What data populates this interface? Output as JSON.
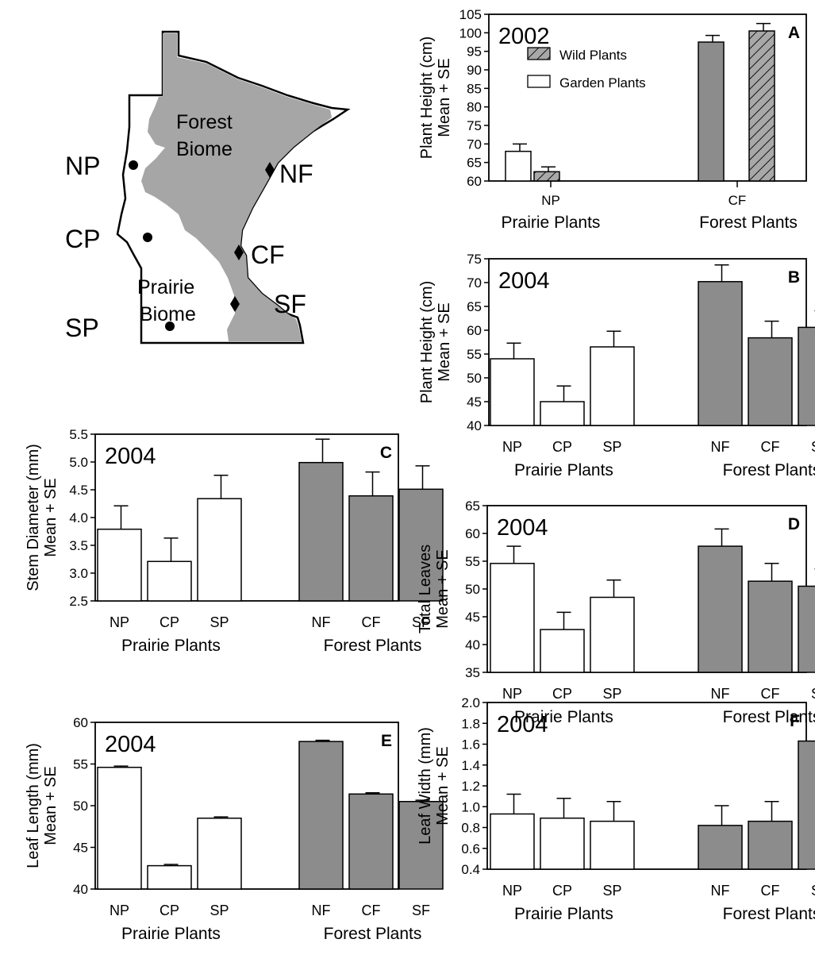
{
  "map": {
    "forest_label": [
      "Forest",
      "Biome"
    ],
    "prairie_label": [
      "Prairie",
      "Biome"
    ],
    "sites": [
      "NP",
      "NF",
      "CP",
      "CF",
      "SP",
      "SF"
    ],
    "colors": {
      "forest": "#a6a6a6",
      "prairie": "#ffffff",
      "outline": "#000000"
    },
    "markers": {
      "prairie": "circle",
      "forest": "diamond"
    }
  },
  "colors": {
    "garden": "#ffffff",
    "forest_bar": "#8c8c8c",
    "wild": "#a8a8a8",
    "stroke": "#000000"
  },
  "chart_data": [
    {
      "id": "A",
      "type": "bar",
      "panel": "A",
      "year": "2002",
      "ylabel": [
        "Plant Height (cm)",
        "Mean + SE"
      ],
      "ylim": [
        60,
        105
      ],
      "yticks": [
        60,
        65,
        70,
        75,
        80,
        85,
        90,
        95,
        100,
        105
      ],
      "groups": [
        "Prairie  Plants",
        "Forest Plants"
      ],
      "categories": [
        "NP",
        "CF"
      ],
      "legend": [
        {
          "name": "Wild Plants",
          "style": "hatched"
        },
        {
          "name": "Garden Plants",
          "style": "open"
        }
      ],
      "bars": [
        {
          "category": "NP",
          "series": "Garden Plants",
          "value": 68,
          "se": 2,
          "style": "open"
        },
        {
          "category": "NP",
          "series": "Wild Plants",
          "value": 62.5,
          "se": 1.3,
          "style": "hatched"
        },
        {
          "category": "CF",
          "series": "Garden Plants",
          "value": 97.5,
          "se": 1.8,
          "style": "gray"
        },
        {
          "category": "CF",
          "series": "Wild Plants",
          "value": 100.5,
          "se": 2.0,
          "style": "hatched"
        }
      ]
    },
    {
      "id": "B",
      "type": "bar",
      "panel": "B",
      "year": "2004",
      "ylabel": [
        "Plant Height (cm)",
        "Mean + SE"
      ],
      "ylim": [
        40,
        75
      ],
      "yticks": [
        40,
        45,
        50,
        55,
        60,
        65,
        70,
        75
      ],
      "groups": [
        "Prairie  Plants",
        "Forest Plants"
      ],
      "categories": [
        "NP",
        "CP",
        "SP",
        "NF",
        "CF",
        "SF"
      ],
      "values": [
        54,
        45,
        56.5,
        70.2,
        58.4,
        60.6
      ],
      "se": [
        3.3,
        3.3,
        3.3,
        3.5,
        3.5,
        3.5
      ]
    },
    {
      "id": "C",
      "type": "bar",
      "panel": "C",
      "year": "2004",
      "ylabel": [
        "Stem Diameter (mm)",
        "Mean + SE"
      ],
      "ylim": [
        2.5,
        5.5
      ],
      "yticks": [
        "2.5",
        "3.0",
        "3.5",
        "4.0",
        "4.5",
        "5.0",
        "5.5"
      ],
      "groups": [
        "Prairie  Plants",
        "Forest Plants"
      ],
      "categories": [
        "NP",
        "CP",
        "SP",
        "NF",
        "CF",
        "SF"
      ],
      "values": [
        3.79,
        3.21,
        4.34,
        4.99,
        4.39,
        4.51
      ],
      "se": [
        0.42,
        0.42,
        0.42,
        0.42,
        0.43,
        0.42
      ]
    },
    {
      "id": "D",
      "type": "bar",
      "panel": "D",
      "year": "2004",
      "ylabel": [
        "Total Leaves",
        "Mean + SE"
      ],
      "ylim": [
        35,
        65
      ],
      "yticks": [
        35,
        40,
        45,
        50,
        55,
        60,
        65
      ],
      "groups": [
        "Prairie  Plants",
        "Forest Plants"
      ],
      "categories": [
        "NP",
        "CP",
        "SP",
        "NF",
        "CF",
        "SF"
      ],
      "values": [
        54.6,
        42.7,
        48.5,
        57.7,
        51.4,
        50.5
      ],
      "se": [
        3.1,
        3.1,
        3.1,
        3.1,
        3.2,
        3.1
      ]
    },
    {
      "id": "E",
      "type": "bar",
      "panel": "E",
      "year": "2004",
      "ylabel": [
        "Leaf Length (mm)",
        "Mean + SE"
      ],
      "ylim": [
        40,
        60
      ],
      "yticks": [
        40,
        45,
        50,
        55,
        60
      ],
      "groups": [
        "Prairie  Plants",
        "Forest Plants"
      ],
      "categories": [
        "NP",
        "CP",
        "SP",
        "NF",
        "CF",
        "SF"
      ],
      "values": [
        54.6,
        42.8,
        48.5,
        57.7,
        51.4,
        50.5
      ],
      "se": [
        0.15,
        0.15,
        0.15,
        0.15,
        0.15,
        0.15
      ]
    },
    {
      "id": "F",
      "type": "bar",
      "panel": "F",
      "year": "2004",
      "ylabel": [
        "Leaf Width (mm)",
        "Mean + SE"
      ],
      "ylim": [
        0.4,
        2.0
      ],
      "yticks": [
        "0.4",
        "0.6",
        "0.8",
        "1.0",
        "1.2",
        "1.4",
        "1.6",
        "1.8",
        "2.0"
      ],
      "groups": [
        "Prairie  Plants",
        "Forest Plants"
      ],
      "categories": [
        "NP",
        "CP",
        "SP",
        "NF",
        "CF",
        "SF"
      ],
      "values": [
        0.93,
        0.89,
        0.86,
        0.82,
        0.86,
        1.63
      ],
      "se": [
        0.19,
        0.19,
        0.19,
        0.19,
        0.19,
        0.19
      ]
    }
  ]
}
